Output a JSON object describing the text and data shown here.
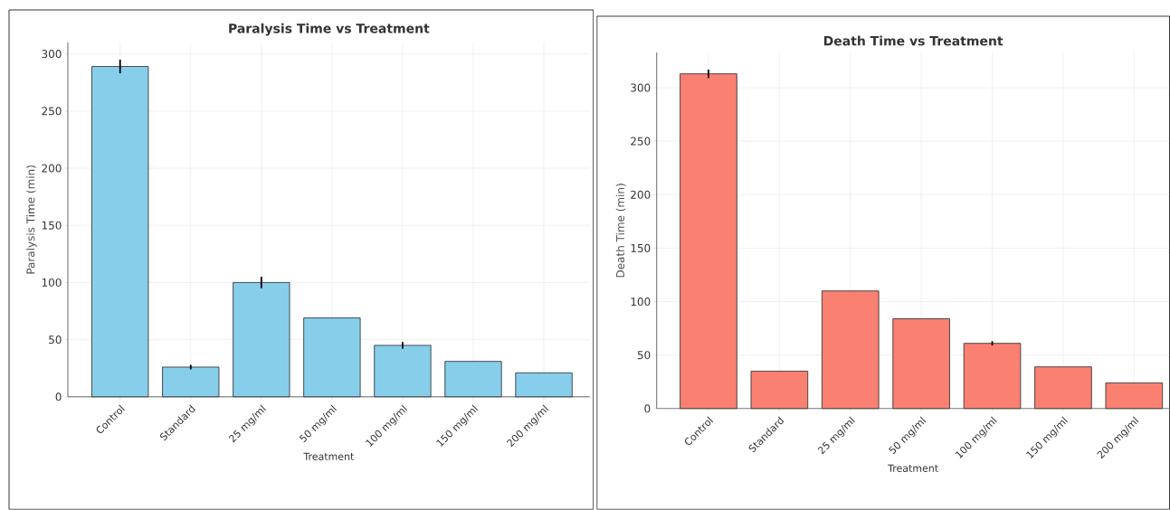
{
  "chart_data": [
    {
      "type": "bar",
      "title": "Paralysis Time vs Treatment",
      "xlabel": "Treatment",
      "ylabel": "Paralysis Time (min)",
      "categories": [
        "Control",
        "Standard",
        "25 mg/ml",
        "50 mg/ml",
        "100 mg/ml",
        "150 mg/ml",
        "200 mg/ml"
      ],
      "values": [
        289,
        26,
        100,
        69,
        45,
        31,
        21
      ],
      "errors": [
        6,
        2,
        5,
        null,
        3,
        null,
        null
      ],
      "color": "#87ceeb",
      "ylim": [
        0,
        310
      ],
      "yticks": [
        0,
        50,
        100,
        150,
        200,
        250,
        300
      ],
      "grid": true
    },
    {
      "type": "bar",
      "title": "Death Time vs Treatment",
      "xlabel": "Treatment",
      "ylabel": "Death Time (min)",
      "categories": [
        "Control",
        "Standard",
        "25 mg/ml",
        "50 mg/ml",
        "100 mg/ml",
        "150 mg/ml",
        "200 mg/ml"
      ],
      "values": [
        313,
        35,
        110,
        84,
        61,
        39,
        24
      ],
      "errors": [
        4,
        null,
        null,
        null,
        2,
        null,
        null
      ],
      "color": "#fa8072",
      "ylim": [
        0,
        333
      ],
      "yticks": [
        0,
        50,
        100,
        150,
        200,
        250,
        300
      ],
      "grid": true
    }
  ]
}
